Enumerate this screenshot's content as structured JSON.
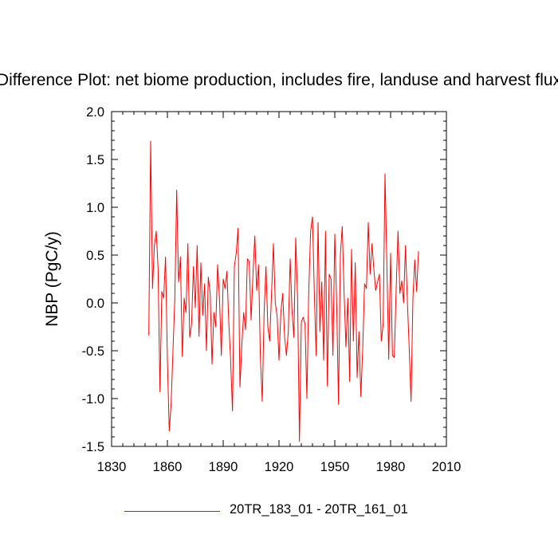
{
  "chart_data": {
    "type": "line",
    "title": "Difference Plot: net biome production, includes fire, landuse and harvest flux",
    "xlabel": "",
    "ylabel": "NBP  (PgC/y)",
    "xlim": [
      1830,
      2010
    ],
    "ylim": [
      -1.5,
      2.0
    ],
    "x_ticks": [
      "1830",
      "1860",
      "1890",
      "1920",
      "1950",
      "1980",
      "2010"
    ],
    "y_ticks": [
      "-1.5",
      "-1.0",
      "-0.5",
      "0.0",
      "0.5",
      "1.0",
      "1.5",
      "2.0"
    ],
    "legend_position": "bottom-center",
    "series": [
      {
        "name": "20TR_183_01 - 20TR_161_01",
        "color": "#ff0000",
        "x_start": 1850,
        "x_step": 1,
        "values": [
          -0.34,
          1.69,
          0.15,
          0.6,
          0.75,
          0.36,
          -0.93,
          0.12,
          0.05,
          0.48,
          -0.6,
          -1.34,
          -1.05,
          -0.5,
          0.05,
          1.18,
          0.22,
          0.48,
          -0.56,
          0.05,
          -0.1,
          0.62,
          -0.36,
          -0.22,
          0.38,
          -0.05,
          0.6,
          -0.35,
          0.42,
          -0.13,
          0.2,
          -0.5,
          0.27,
          0.1,
          -0.64,
          -0.1,
          -0.25,
          0.4,
          0.05,
          -0.55,
          0.25,
          0.15,
          0.33,
          -0.2,
          -0.6,
          -1.13,
          0.38,
          0.52,
          0.78,
          -0.88,
          -0.45,
          -0.1,
          -0.28,
          0.46,
          0.43,
          -0.18,
          0.3,
          0.7,
          0.13,
          0.4,
          -0.58,
          -1.03,
          -0.1,
          0.38,
          -0.25,
          -0.4,
          0.1,
          0.62,
          0.0,
          -0.14,
          -0.6,
          -0.1,
          0.1,
          -0.35,
          -0.55,
          -0.3,
          0.46,
          -0.08,
          -0.36,
          0.68,
          0.05,
          -1.45,
          -0.2,
          -0.15,
          -0.22,
          -1.0,
          0.12,
          0.75,
          0.9,
          0.1,
          -0.55,
          0.84,
          -0.3,
          0.22,
          -0.6,
          0.75,
          -0.87,
          0.3,
          0.25,
          -0.55,
          0.72,
          0.0,
          -1.06,
          0.5,
          0.8,
          0.1,
          -0.46,
          0.05,
          -0.82,
          0.56,
          -0.4,
          0.42,
          -0.78,
          -0.3,
          -0.98,
          -0.48,
          0.2,
          0.15,
          0.84,
          0.3,
          0.62,
          0.35,
          0.13,
          0.22,
          0.3,
          -0.4,
          -0.22,
          1.35,
          0.4,
          -0.59,
          0.52,
          -0.55,
          -0.57,
          0.15,
          0.75,
          0.1,
          0.23,
          0.0,
          0.6,
          0.03,
          -0.47,
          -1.03,
          0.05,
          0.45,
          0.12,
          0.54
        ]
      }
    ]
  }
}
